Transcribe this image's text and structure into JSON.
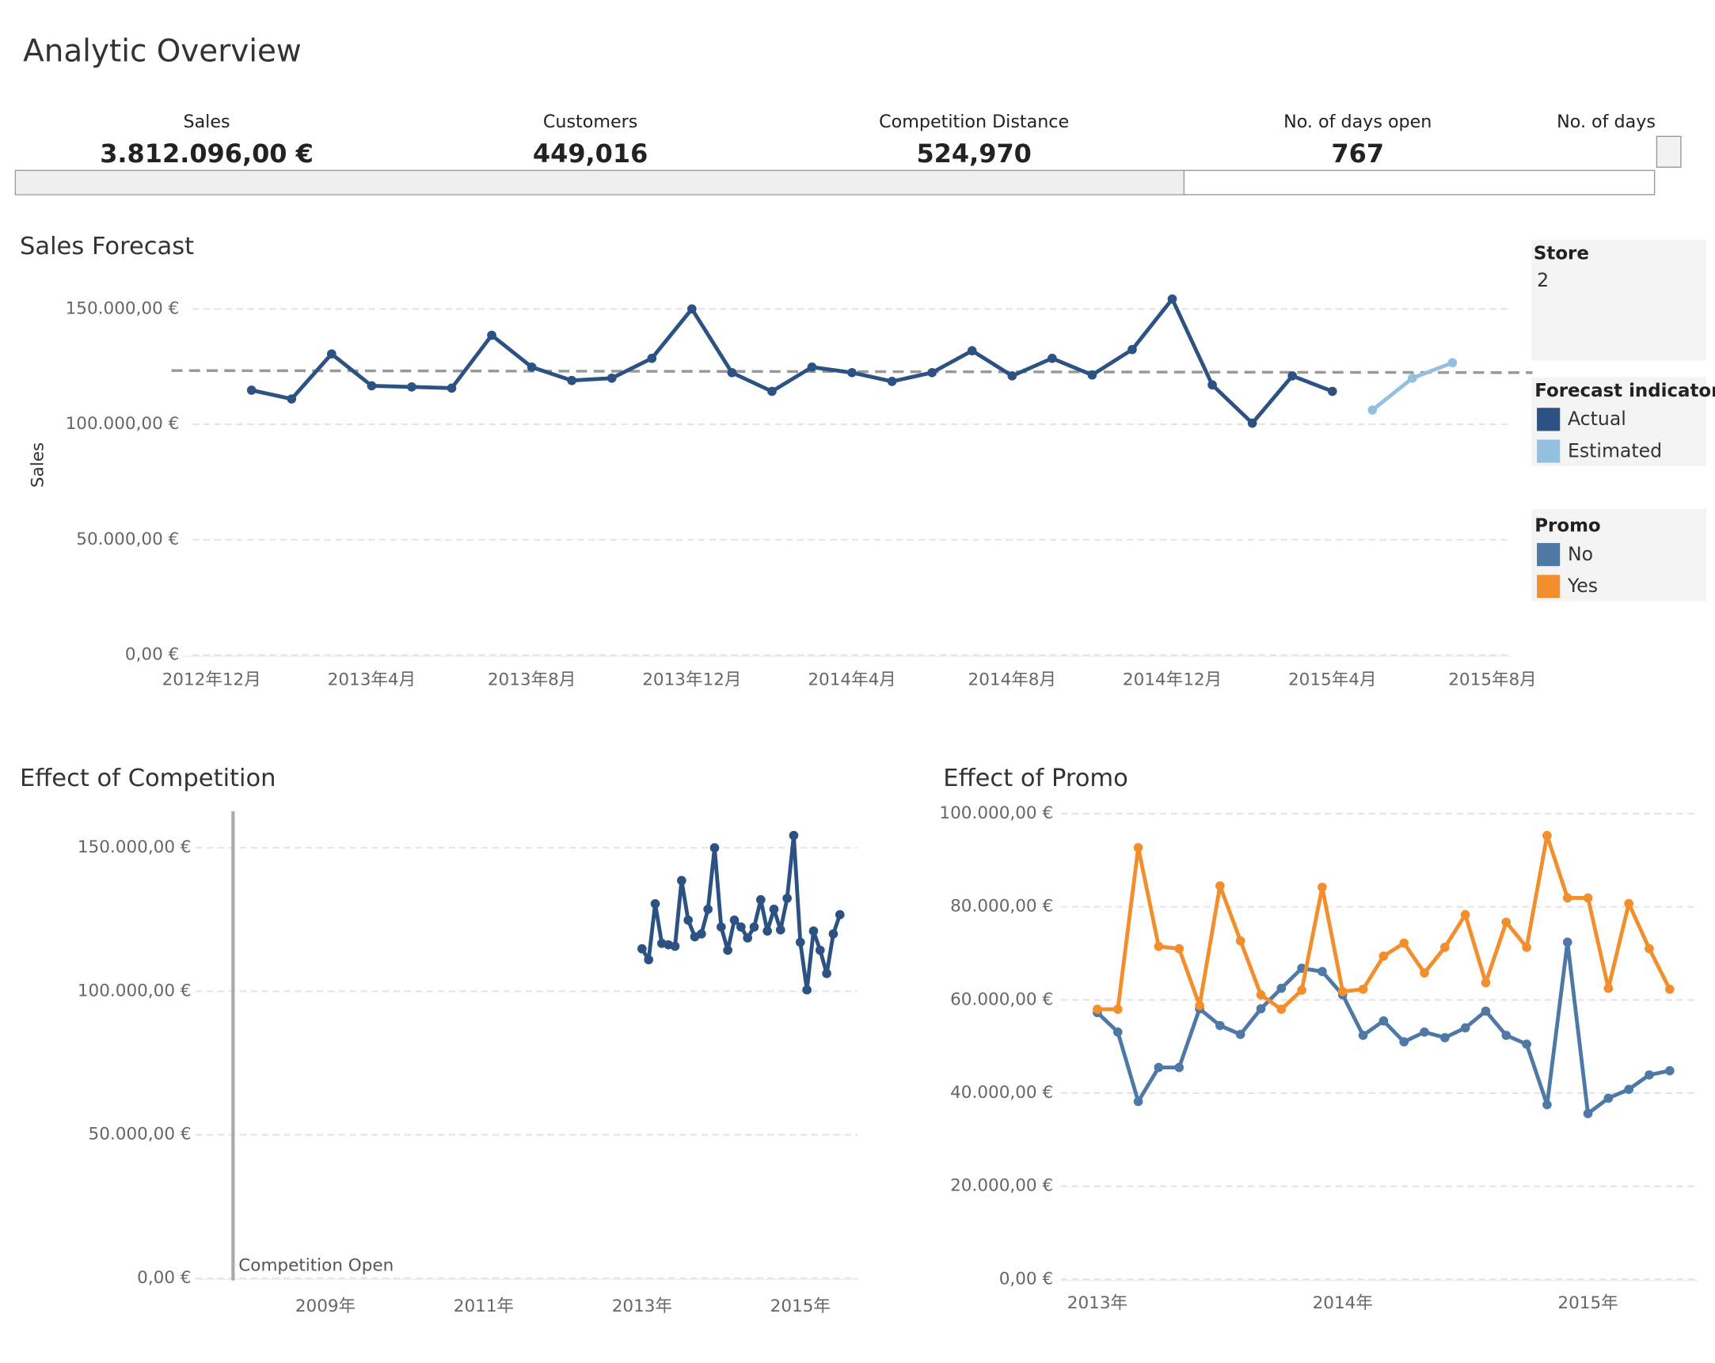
{
  "title": "Analytic Overview",
  "kpis": [
    {
      "label": "Sales",
      "value": "3.812.096,00 €"
    },
    {
      "label": "Customers",
      "value": "449,016"
    },
    {
      "label": "Competition Distance",
      "value": "524,970"
    },
    {
      "label": "No. of days open",
      "value": 767
    },
    {
      "label": "No. of days"
    }
  ],
  "filter": {
    "title": "Store",
    "value": 2
  },
  "chart_data": [
    {
      "type": "line",
      "title": "Sales Forecast",
      "ylabel": "Sales",
      "legend_title": "Forecast indicator",
      "x": [
        "2013-01",
        "2013-02",
        "2013-03",
        "2013-04",
        "2013-05",
        "2013-06",
        "2013-07",
        "2013-08",
        "2013-09",
        "2013-10",
        "2013-11",
        "2013-12",
        "2014-01",
        "2014-02",
        "2014-03",
        "2014-04",
        "2014-05",
        "2014-06",
        "2014-07",
        "2014-08",
        "2014-09",
        "2014-10",
        "2014-11",
        "2014-12",
        "2015-01",
        "2015-02",
        "2015-03",
        "2015-04",
        "2015-05",
        "2015-06",
        "2015-07"
      ],
      "series": [
        {
          "name": "Actual",
          "color": "#2b5283",
          "values": [
            114800,
            111000,
            130500,
            116700,
            116200,
            115700,
            138600,
            124800,
            119000,
            120000,
            128600,
            150000,
            122400,
            114300,
            124800,
            122400,
            118600,
            122400,
            131900,
            121000,
            128600,
            121400,
            132400,
            154300,
            117100,
            100500,
            121000,
            114300,
            null,
            null,
            null
          ]
        },
        {
          "name": "Estimated",
          "color": "#93c0de",
          "values": [
            null,
            null,
            null,
            null,
            null,
            null,
            null,
            null,
            null,
            null,
            null,
            null,
            null,
            null,
            null,
            null,
            null,
            null,
            null,
            null,
            null,
            null,
            null,
            null,
            null,
            null,
            null,
            null,
            106200,
            120000,
            126700
          ]
        }
      ],
      "trend_line": {
        "x": [
          "2012-11",
          "2015-09"
        ],
        "values": [
          123300,
          122400
        ],
        "color": "#999999"
      },
      "xlim": [
        "2012-11",
        "2015-09"
      ],
      "xticks": [
        {
          "value": "2012-12",
          "label": "2012年12月"
        },
        {
          "value": "2013-04",
          "label": "2013年4月"
        },
        {
          "value": "2013-08",
          "label": "2013年8月"
        },
        {
          "value": "2013-12",
          "label": "2013年12月"
        },
        {
          "value": "2014-04",
          "label": "2014年4月"
        },
        {
          "value": "2014-08",
          "label": "2014年8月"
        },
        {
          "value": "2014-12",
          "label": "2014年12月"
        },
        {
          "value": "2015-04",
          "label": "2015年4月"
        },
        {
          "value": "2015-08",
          "label": "2015年8月"
        }
      ],
      "ylim": [
        0,
        165000
      ],
      "yticks": [
        {
          "value": 0,
          "label": "0,00 €"
        },
        {
          "value": 50000,
          "label": "50.000,00 €"
        },
        {
          "value": 100000,
          "label": "100.000,00 €"
        },
        {
          "value": 150000,
          "label": "150.000,00 €"
        }
      ],
      "grid": true
    },
    {
      "type": "line",
      "title": "Effect of Competition",
      "color": "#2b5283",
      "x": [
        "2013-01",
        "2013-02",
        "2013-03",
        "2013-04",
        "2013-05",
        "2013-06",
        "2013-07",
        "2013-08",
        "2013-09",
        "2013-10",
        "2013-11",
        "2013-12",
        "2014-01",
        "2014-02",
        "2014-03",
        "2014-04",
        "2014-05",
        "2014-06",
        "2014-07",
        "2014-08",
        "2014-09",
        "2014-10",
        "2014-11",
        "2014-12",
        "2015-01",
        "2015-02",
        "2015-03",
        "2015-04",
        "2015-05",
        "2015-06",
        "2015-07"
      ],
      "values": [
        114800,
        111000,
        130500,
        116700,
        116200,
        115700,
        138600,
        124800,
        119000,
        120000,
        128600,
        150000,
        122400,
        114300,
        124800,
        122400,
        118600,
        122400,
        131900,
        121000,
        128600,
        121400,
        132400,
        154300,
        117100,
        100500,
        121000,
        114300,
        106200,
        120000,
        126700
      ],
      "reference_line": {
        "x": "2007-11",
        "label": "Competition Open",
        "color": "#aaaaaa"
      },
      "xlim": [
        "2007-05",
        "2015-09"
      ],
      "xticks": [
        {
          "value": "2009-01",
          "label": "2009年"
        },
        {
          "value": "2011-01",
          "label": "2011年"
        },
        {
          "value": "2013-01",
          "label": "2013年"
        },
        {
          "value": "2015-01",
          "label": "2015年"
        }
      ],
      "ylim": [
        0,
        162000
      ],
      "yticks": [
        {
          "value": 0,
          "label": "0,00 €"
        },
        {
          "value": 50000,
          "label": "50.000,00 €"
        },
        {
          "value": 100000,
          "label": "100.000,00 €"
        },
        {
          "value": 150000,
          "label": "150.000,00 €"
        }
      ],
      "grid": true
    },
    {
      "type": "line",
      "title": "Effect of Promo",
      "legend_title": "Promo",
      "x": [
        "2013-01",
        "2013-02",
        "2013-03",
        "2013-04",
        "2013-05",
        "2013-06",
        "2013-07",
        "2013-08",
        "2013-09",
        "2013-10",
        "2013-11",
        "2013-12",
        "2014-01",
        "2014-02",
        "2014-03",
        "2014-04",
        "2014-05",
        "2014-06",
        "2014-07",
        "2014-08",
        "2014-09",
        "2014-10",
        "2014-11",
        "2014-12",
        "2015-01",
        "2015-02",
        "2015-03",
        "2015-04",
        "2015-05"
      ],
      "series": [
        {
          "name": "No",
          "color": "#4e79a7",
          "values": [
            57300,
            53100,
            38200,
            45500,
            45500,
            58100,
            54500,
            52600,
            58100,
            62500,
            66800,
            66100,
            61100,
            52400,
            55500,
            51000,
            53100,
            51900,
            54000,
            57600,
            52400,
            50500,
            37500,
            72400,
            35600,
            38900,
            40800,
            43900,
            44800
          ]
        },
        {
          "name": "Yes",
          "color": "#f28e2b",
          "values": [
            58000,
            58000,
            92700,
            71500,
            71000,
            58800,
            84500,
            72700,
            61100,
            58000,
            62100,
            84200,
            61800,
            62300,
            69400,
            72200,
            65800,
            71300,
            78300,
            63700,
            76700,
            71300,
            95300,
            81900,
            81900,
            62500,
            80700,
            71000,
            62300
          ]
        }
      ],
      "xlim": [
        "2012-11",
        "2015-07"
      ],
      "xticks": [
        {
          "value": "2013-01",
          "label": "2013年"
        },
        {
          "value": "2014-01",
          "label": "2014年"
        },
        {
          "value": "2015-01",
          "label": "2015年"
        }
      ],
      "ylim": [
        0,
        100000
      ],
      "yticks": [
        {
          "value": 0,
          "label": "0,00 €"
        },
        {
          "value": 20000,
          "label": "20.000,00 €"
        },
        {
          "value": 40000,
          "label": "40.000,00 €"
        },
        {
          "value": 60000,
          "label": "60.000,00 €"
        },
        {
          "value": 80000,
          "label": "80.000,00 €"
        },
        {
          "value": 100000,
          "label": "100.000,00 €"
        }
      ],
      "grid": true
    }
  ]
}
